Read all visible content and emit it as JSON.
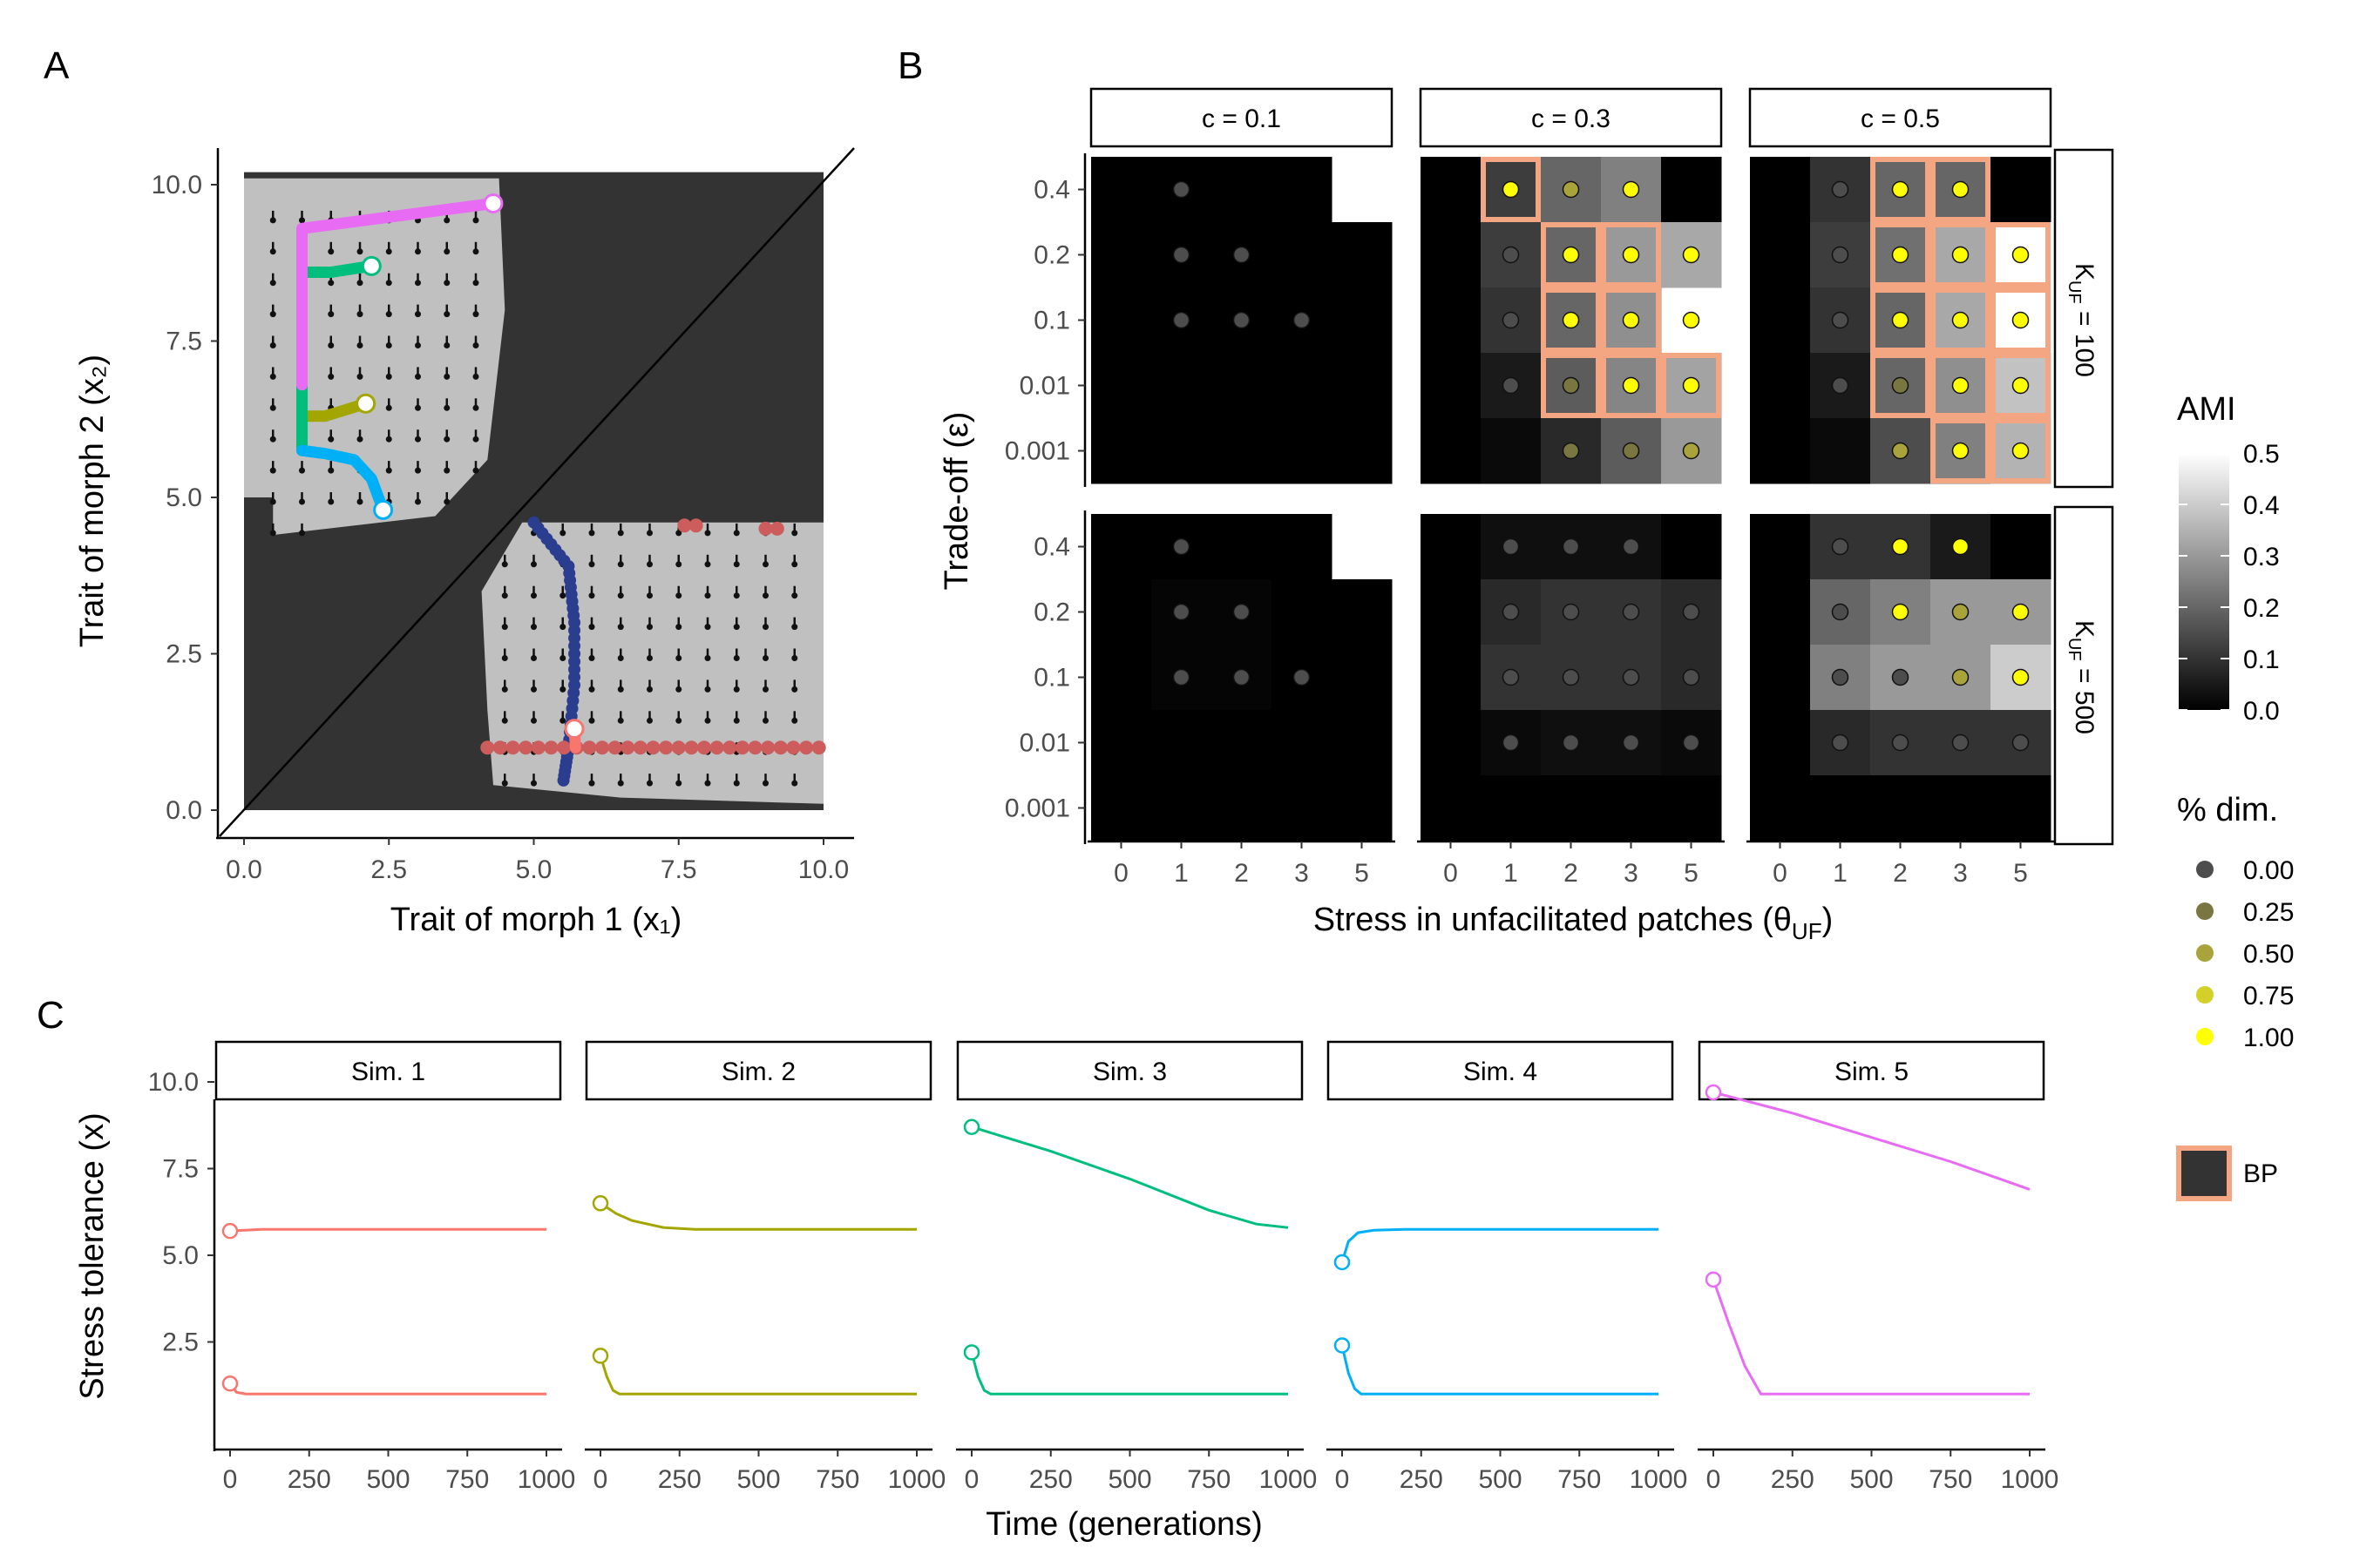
{
  "panel_labels": {
    "a": "A",
    "b": "B",
    "c": "C"
  },
  "chart_data": [
    {
      "id": "A",
      "type": "scatter",
      "xlabel": "Trait of morph 1 (x₁)",
      "ylabel": "Trait of morph 2 (x₂)",
      "xlim": [
        0,
        10
      ],
      "ylim": [
        0,
        10
      ],
      "xticks": [
        0,
        2.5,
        5,
        7.5,
        10
      ],
      "yticks": [
        0,
        2.5,
        5,
        7.5,
        10
      ],
      "tick_labels": [
        "0.0",
        "2.5",
        "5.0",
        "7.5",
        "10.0"
      ],
      "background_color": "#333333",
      "region_color": "#c0c0c0",
      "diagonal_line": true,
      "trajectories": [
        {
          "color": "#f8766d",
          "x": [
            5.7,
            5.72,
            5.72
          ],
          "y": [
            1.3,
            1.0,
            1.0
          ]
        },
        {
          "color": "#a3a500",
          "x": [
            2.1,
            1.4,
            1.0
          ],
          "y": [
            6.5,
            6.3,
            6.3
          ]
        },
        {
          "color": "#00bf7d",
          "x": [
            2.2,
            1.5,
            1.0,
            1.0
          ],
          "y": [
            8.7,
            8.6,
            8.6,
            5.75
          ]
        },
        {
          "color": "#00b0f6",
          "x": [
            2.4,
            2.2,
            1.9,
            1.4,
            1.0
          ],
          "y": [
            4.8,
            5.3,
            5.6,
            5.7,
            5.75
          ]
        },
        {
          "color": "#e76bf3",
          "x": [
            4.3,
            1.0,
            1.0
          ],
          "y": [
            9.7,
            9.3,
            6.8
          ]
        }
      ],
      "blue_points": {
        "color": "#2a3d8f",
        "x": [
          5.0,
          5.6,
          5.7,
          5.7,
          5.6,
          5.5
        ],
        "y": [
          4.6,
          3.9,
          3.0,
          2.0,
          1.0,
          0.4
        ]
      },
      "red_points": {
        "color": "#cd5c5c",
        "x": [
          4.2,
          10.0
        ],
        "y": [
          1.0,
          1.0
        ],
        "cluster_x": [
          7.6,
          7.8,
          9.0,
          9.2
        ],
        "cluster_y": [
          4.55,
          4.55,
          4.5,
          4.5
        ]
      }
    },
    {
      "id": "B",
      "type": "heatmap",
      "xlabel": "Stress in unfacilitated patches (θ",
      "xlabel_sub": "UF",
      "xlabel_end": ")",
      "ylabel": "Trade-off (ε)",
      "x_categories": [
        "0",
        "1",
        "2",
        "3",
        "5"
      ],
      "y_categories": [
        "0.4",
        "0.2",
        "0.1",
        "0.01",
        "0.001"
      ],
      "col_facets": [
        "c = 0.1",
        "c = 0.3",
        "c = 0.5"
      ],
      "row_facets": [
        {
          "k": "K",
          "sub": "UF",
          "rest": " = 100"
        },
        {
          "k": "K",
          "sub": "UF",
          "rest": " = 500"
        }
      ],
      "panels": [
        {
          "col": 0,
          "row": 0,
          "ami": [
            [
              0,
              0,
              0,
              0,
              null
            ],
            [
              0,
              0,
              0,
              0,
              0
            ],
            [
              0,
              0,
              0,
              0,
              0
            ],
            [
              0,
              0,
              0,
              0,
              0
            ],
            [
              0,
              0,
              0,
              0,
              0
            ]
          ],
          "dim": [
            [
              null,
              0,
              null,
              null,
              null
            ],
            [
              null,
              0,
              0,
              null,
              null
            ],
            [
              null,
              0,
              0,
              0,
              null
            ],
            [
              null,
              null,
              null,
              null,
              null
            ],
            [
              null,
              null,
              null,
              null,
              null
            ]
          ],
          "bp": [
            [
              0,
              0,
              0,
              0,
              0
            ],
            [
              0,
              0,
              0,
              0,
              0
            ],
            [
              0,
              0,
              0,
              0,
              0
            ],
            [
              0,
              0,
              0,
              0,
              0
            ],
            [
              0,
              0,
              0,
              0,
              0
            ]
          ]
        },
        {
          "col": 1,
          "row": 0,
          "ami": [
            [
              0,
              0.12,
              0.2,
              0.25,
              0
            ],
            [
              0,
              0.12,
              0.2,
              0.3,
              0.33
            ],
            [
              0,
              0.1,
              0.2,
              0.28,
              null
            ],
            [
              0,
              0.05,
              0.18,
              0.26,
              0.32
            ],
            [
              0,
              0.02,
              0.08,
              0.18,
              0.3
            ]
          ],
          "dim": [
            [
              null,
              1,
              0.5,
              1,
              null
            ],
            [
              null,
              0,
              1,
              1,
              1
            ],
            [
              null,
              0,
              1,
              1,
              1
            ],
            [
              null,
              0,
              0.25,
              1,
              1
            ],
            [
              null,
              null,
              0.25,
              0.25,
              0.5
            ]
          ],
          "bp": [
            [
              0,
              1,
              0,
              0,
              0
            ],
            [
              0,
              0,
              1,
              1,
              0
            ],
            [
              0,
              0,
              1,
              1,
              0
            ],
            [
              0,
              0,
              1,
              1,
              1
            ],
            [
              0,
              0,
              0,
              0,
              0
            ]
          ]
        },
        {
          "col": 2,
          "row": 0,
          "ami": [
            [
              0,
              0.1,
              0.2,
              0.2,
              0
            ],
            [
              0,
              0.12,
              0.22,
              0.33,
              0.5
            ],
            [
              0,
              0.1,
              0.2,
              0.33,
              0.5
            ],
            [
              0,
              0.05,
              0.2,
              0.28,
              0.38
            ],
            [
              0,
              0.02,
              0.15,
              0.25,
              0.35
            ]
          ],
          "dim": [
            [
              null,
              0,
              1,
              1,
              null
            ],
            [
              null,
              0,
              1,
              1,
              1
            ],
            [
              null,
              0,
              1,
              1,
              1
            ],
            [
              null,
              0,
              0.25,
              1,
              1
            ],
            [
              null,
              null,
              0.5,
              1,
              1
            ]
          ],
          "bp": [
            [
              0,
              0,
              1,
              1,
              0
            ],
            [
              0,
              0,
              1,
              1,
              1
            ],
            [
              0,
              0,
              1,
              1,
              1
            ],
            [
              0,
              0,
              1,
              1,
              1
            ],
            [
              0,
              0,
              0,
              1,
              1
            ]
          ]
        },
        {
          "col": 0,
          "row": 1,
          "ami": [
            [
              0,
              0,
              0,
              0,
              null
            ],
            [
              0,
              0.01,
              0.01,
              0,
              0
            ],
            [
              0,
              0.01,
              0.01,
              0,
              0
            ],
            [
              0,
              0,
              0,
              0,
              0
            ],
            [
              0,
              0,
              0,
              0,
              0
            ]
          ],
          "dim": [
            [
              null,
              0,
              null,
              null,
              null
            ],
            [
              null,
              0,
              0,
              null,
              null
            ],
            [
              null,
              0,
              0,
              0,
              null
            ],
            [
              null,
              null,
              null,
              null,
              null
            ],
            [
              null,
              null,
              null,
              null,
              null
            ]
          ],
          "bp": [
            [
              0,
              0,
              0,
              0,
              0
            ],
            [
              0,
              0,
              0,
              0,
              0
            ],
            [
              0,
              0,
              0,
              0,
              0
            ],
            [
              0,
              0,
              0,
              0,
              0
            ],
            [
              0,
              0,
              0,
              0,
              0
            ]
          ]
        },
        {
          "col": 1,
          "row": 1,
          "ami": [
            [
              0,
              0.03,
              0.03,
              0.03,
              0
            ],
            [
              0,
              0.08,
              0.1,
              0.1,
              0.08
            ],
            [
              0,
              0.1,
              0.1,
              0.1,
              0.08
            ],
            [
              0,
              0.02,
              0.03,
              0.03,
              0.02
            ],
            [
              0,
              0,
              0,
              0,
              0
            ]
          ],
          "dim": [
            [
              null,
              0,
              0,
              0,
              null
            ],
            [
              null,
              0,
              0,
              0,
              0
            ],
            [
              null,
              0,
              0,
              0,
              0
            ],
            [
              null,
              0,
              0,
              0,
              0
            ],
            [
              null,
              null,
              null,
              null,
              null
            ]
          ],
          "bp": [
            [
              0,
              0,
              0,
              0,
              0
            ],
            [
              0,
              0,
              0,
              0,
              0
            ],
            [
              0,
              0,
              0,
              0,
              0
            ],
            [
              0,
              0,
              0,
              0,
              0
            ],
            [
              0,
              0,
              0,
              0,
              0
            ]
          ]
        },
        {
          "col": 2,
          "row": 1,
          "ami": [
            [
              0,
              0.1,
              0.1,
              0.05,
              0
            ],
            [
              0,
              0.2,
              0.25,
              0.3,
              0.3
            ],
            [
              0,
              0.25,
              0.3,
              0.3,
              0.4
            ],
            [
              0,
              0.08,
              0.1,
              0.1,
              0.1
            ],
            [
              0,
              0,
              0,
              0,
              0
            ]
          ],
          "dim": [
            [
              null,
              0,
              1,
              1,
              null
            ],
            [
              null,
              0,
              1,
              0.5,
              1
            ],
            [
              null,
              0,
              0,
              0.5,
              1
            ],
            [
              null,
              0,
              0,
              0,
              0
            ],
            [
              null,
              null,
              null,
              null,
              null
            ]
          ],
          "bp": [
            [
              0,
              0,
              0,
              0,
              0
            ],
            [
              0,
              0,
              0,
              0,
              0
            ],
            [
              0,
              0,
              0,
              0,
              0
            ],
            [
              0,
              0,
              0,
              0,
              0
            ],
            [
              0,
              0,
              0,
              0,
              0
            ]
          ]
        }
      ],
      "legend_ami": {
        "title": "AMI",
        "ticks": [
          "0.0",
          "0.1",
          "0.2",
          "0.3",
          "0.4",
          "0.5"
        ]
      },
      "legend_dim": {
        "title": "% dim.",
        "values": [
          "0.00",
          "0.25",
          "0.50",
          "0.75",
          "1.00"
        ],
        "colors": [
          "#4d4d4d",
          "#7a7641",
          "#a8a33a",
          "#d4cf29",
          "#ffff00"
        ]
      },
      "legend_bp": {
        "label": "BP",
        "border_color": "#f4a582",
        "fill": "#333333"
      }
    },
    {
      "id": "C",
      "type": "line",
      "xlabel": "Time (generations)",
      "ylabel": "Stress tolerance (x)",
      "xlim": [
        0,
        1000
      ],
      "ylim": [
        0,
        10
      ],
      "xticks": [
        0,
        250,
        500,
        750,
        1000
      ],
      "yticks": [
        2.5,
        5,
        7.5,
        10
      ],
      "ytick_labels": [
        "2.5",
        "5.0",
        "7.5",
        "10.0"
      ],
      "facets": [
        {
          "label": "Sim. 1",
          "color": "#f8766d",
          "series": [
            {
              "x": [
                0,
                100,
                1000
              ],
              "y": [
                5.7,
                5.75,
                5.75
              ]
            },
            {
              "x": [
                0,
                20,
                50,
                100,
                1000
              ],
              "y": [
                1.3,
                1.05,
                1.0,
                1.0,
                1.0
              ]
            }
          ]
        },
        {
          "label": "Sim. 2",
          "color": "#a3a500",
          "series": [
            {
              "x": [
                0,
                50,
                100,
                200,
                300,
                1000
              ],
              "y": [
                6.5,
                6.2,
                6.0,
                5.8,
                5.75,
                5.75
              ]
            },
            {
              "x": [
                0,
                20,
                40,
                60,
                100,
                1000
              ],
              "y": [
                2.1,
                1.5,
                1.1,
                1.0,
                1.0,
                1.0
              ]
            }
          ]
        },
        {
          "label": "Sim. 3",
          "color": "#00bf7d",
          "series": [
            {
              "x": [
                0,
                250,
                500,
                750,
                900,
                1000
              ],
              "y": [
                8.7,
                8.0,
                7.2,
                6.3,
                5.9,
                5.8
              ]
            },
            {
              "x": [
                0,
                20,
                40,
                60,
                100,
                1000
              ],
              "y": [
                2.2,
                1.5,
                1.1,
                1.0,
                1.0,
                1.0
              ]
            }
          ]
        },
        {
          "label": "Sim. 4",
          "color": "#00b0f6",
          "series": [
            {
              "x": [
                0,
                20,
                50,
                100,
                200,
                1000
              ],
              "y": [
                4.8,
                5.4,
                5.65,
                5.72,
                5.75,
                5.75
              ]
            },
            {
              "x": [
                0,
                20,
                40,
                60,
                100,
                1000
              ],
              "y": [
                2.4,
                1.6,
                1.15,
                1.0,
                1.0,
                1.0
              ]
            }
          ]
        },
        {
          "label": "Sim. 5",
          "color": "#e76bf3",
          "series": [
            {
              "x": [
                0,
                250,
                500,
                750,
                1000
              ],
              "y": [
                9.7,
                9.1,
                8.4,
                7.7,
                6.9
              ]
            },
            {
              "x": [
                0,
                50,
                100,
                150,
                200,
                1000
              ],
              "y": [
                4.3,
                3.0,
                1.8,
                1.0,
                1.0,
                1.0
              ]
            }
          ]
        }
      ]
    }
  ]
}
